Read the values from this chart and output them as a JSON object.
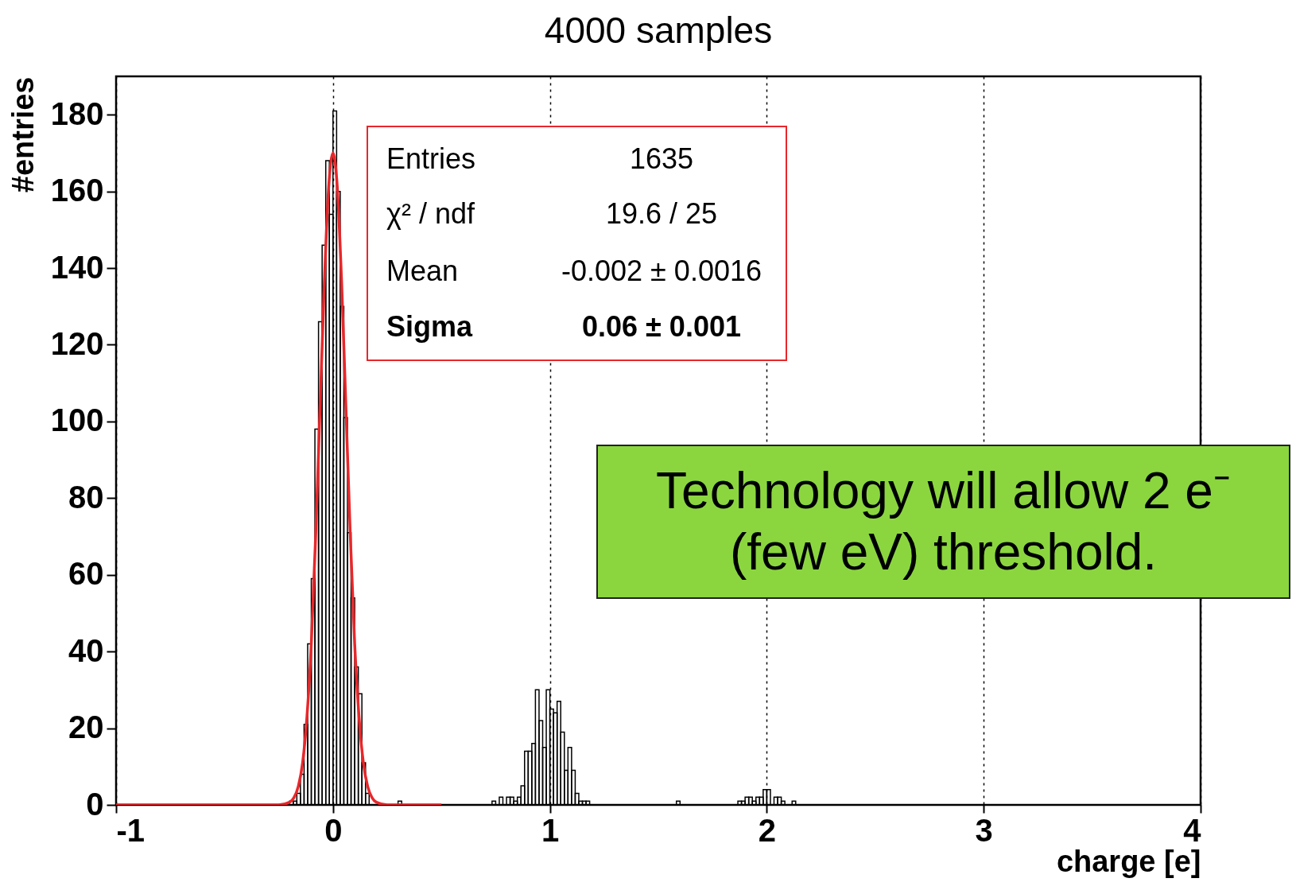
{
  "chart_data": {
    "type": "histogram",
    "title": "4000 samples",
    "xlabel": "charge [e]",
    "ylabel": "#entries",
    "xlim": [
      -1,
      4
    ],
    "xticks": [
      -1,
      0,
      1,
      2,
      3,
      4
    ],
    "ylim": [
      0,
      190
    ],
    "yticks": [
      0,
      20,
      40,
      60,
      80,
      100,
      120,
      140,
      160,
      180
    ],
    "grid": "x",
    "series": [
      {
        "type": "histogram",
        "color": "#000000",
        "bins": [
          -0.2,
          -0.1833,
          -0.1667,
          -0.15,
          -0.1333,
          -0.1167,
          -0.1,
          -0.0833,
          -0.0667,
          -0.05,
          -0.0333,
          -0.0167,
          0,
          0.0167,
          0.0333,
          0.05,
          0.0667,
          0.0833,
          0.1,
          0.1167,
          0.1333,
          0.15,
          0.1667,
          0.1833,
          0.2,
          0.2167,
          0.2333,
          0.25,
          0.2667,
          0.2833,
          0.3,
          0.3167,
          0.3333,
          0.35,
          0.3667,
          0.3833,
          0.4,
          0.4167,
          0.4333,
          0.45,
          0.4667,
          0.4833,
          0.5,
          0.5167,
          0.5333,
          0.55,
          0.5667,
          0.5833,
          0.6,
          0.6167,
          0.6333,
          0.65,
          0.6667,
          0.6833,
          0.7,
          0.7167,
          0.7333,
          0.75,
          0.7667,
          0.7833,
          0.8,
          0.8167,
          0.8333,
          0.85,
          0.8667,
          0.8833,
          0.9,
          0.9167,
          0.9333,
          0.95,
          0.9667,
          0.9833,
          1,
          1.0167,
          1.0333,
          1.05,
          1.0667,
          1.0833,
          1.1,
          1.1167,
          1.1333,
          1.15,
          1.1667,
          1.1833,
          1.2,
          1.2167,
          1.2333,
          1.25,
          1.2667,
          1.2833,
          1.3,
          1.3167,
          1.3333,
          1.35,
          1.3667,
          1.3833,
          1.4,
          1.4167,
          1.4333,
          1.45,
          1.4667,
          1.4833,
          1.5,
          1.5167,
          1.5333,
          1.55,
          1.5667,
          1.5833,
          1.6,
          1.6167,
          1.6333,
          1.65,
          1.6667,
          1.6833,
          1.7,
          1.7167,
          1.7333,
          1.75,
          1.7667,
          1.7833,
          1.8,
          1.8167,
          1.8333,
          1.85,
          1.8667,
          1.8833,
          1.9,
          1.9167,
          1.9333,
          1.95,
          1.9667,
          1.9833,
          2,
          2.0167,
          2.0333,
          2.05,
          2.0667,
          2.0833,
          2.1,
          2.1167,
          2.1333,
          2.15
        ],
        "values": [
          1,
          1,
          3,
          8,
          21,
          42,
          59,
          98,
          126,
          146,
          168,
          154,
          181,
          160,
          130,
          101,
          71,
          54,
          36,
          29,
          11,
          3,
          0,
          0,
          0,
          0,
          0,
          0,
          0,
          0,
          1,
          0,
          0,
          0,
          0,
          0,
          0,
          0,
          0,
          0,
          0,
          0,
          0,
          0,
          0,
          0,
          0,
          0,
          0,
          0,
          0,
          0,
          0,
          0,
          0,
          0,
          1,
          0,
          2,
          0,
          2,
          2,
          1,
          2,
          5,
          14,
          14,
          16,
          30,
          22,
          15,
          30,
          25,
          24,
          27,
          19,
          9,
          15,
          9,
          3,
          1,
          1,
          1,
          0,
          0,
          0,
          0,
          0,
          0,
          0,
          0,
          0,
          0,
          0,
          0,
          0,
          0,
          0,
          0,
          0,
          0,
          0,
          0,
          0,
          0,
          0,
          0,
          1,
          0,
          0,
          0,
          0,
          0,
          0,
          0,
          0,
          0,
          0,
          0,
          0,
          0,
          0,
          0,
          0,
          1,
          1,
          2,
          2,
          1,
          2,
          2,
          4,
          4,
          0,
          2,
          2,
          1,
          0,
          0,
          1,
          0
        ]
      },
      {
        "type": "line",
        "color": "#e8272a",
        "x": [
          -1,
          -0.3,
          -0.25,
          -0.2,
          -0.18,
          -0.16,
          -0.14,
          -0.12,
          -0.1,
          -0.08,
          -0.06,
          -0.04,
          -0.02,
          0,
          0.02,
          0.04,
          0.06,
          0.08,
          0.1,
          0.12,
          0.14,
          0.16,
          0.18,
          0.2,
          0.25,
          0.3,
          0.5
        ],
        "values": [
          0,
          0,
          0,
          0.7,
          1.9,
          4.8,
          11,
          23,
          42,
          70,
          103,
          136,
          161,
          170,
          161,
          136,
          103,
          70,
          42,
          23,
          11,
          4.8,
          1.9,
          0.7,
          0,
          0,
          0
        ]
      }
    ],
    "annotations": [
      "Entries",
      "1635",
      "χ² / ndf",
      "19.6 / 25",
      "Mean",
      "-0.002 ± 0.0016",
      "Sigma",
      "0.06 ± 0.001",
      "Technology will allow 2 e⁻\n(few eV) threshold."
    ]
  }
}
